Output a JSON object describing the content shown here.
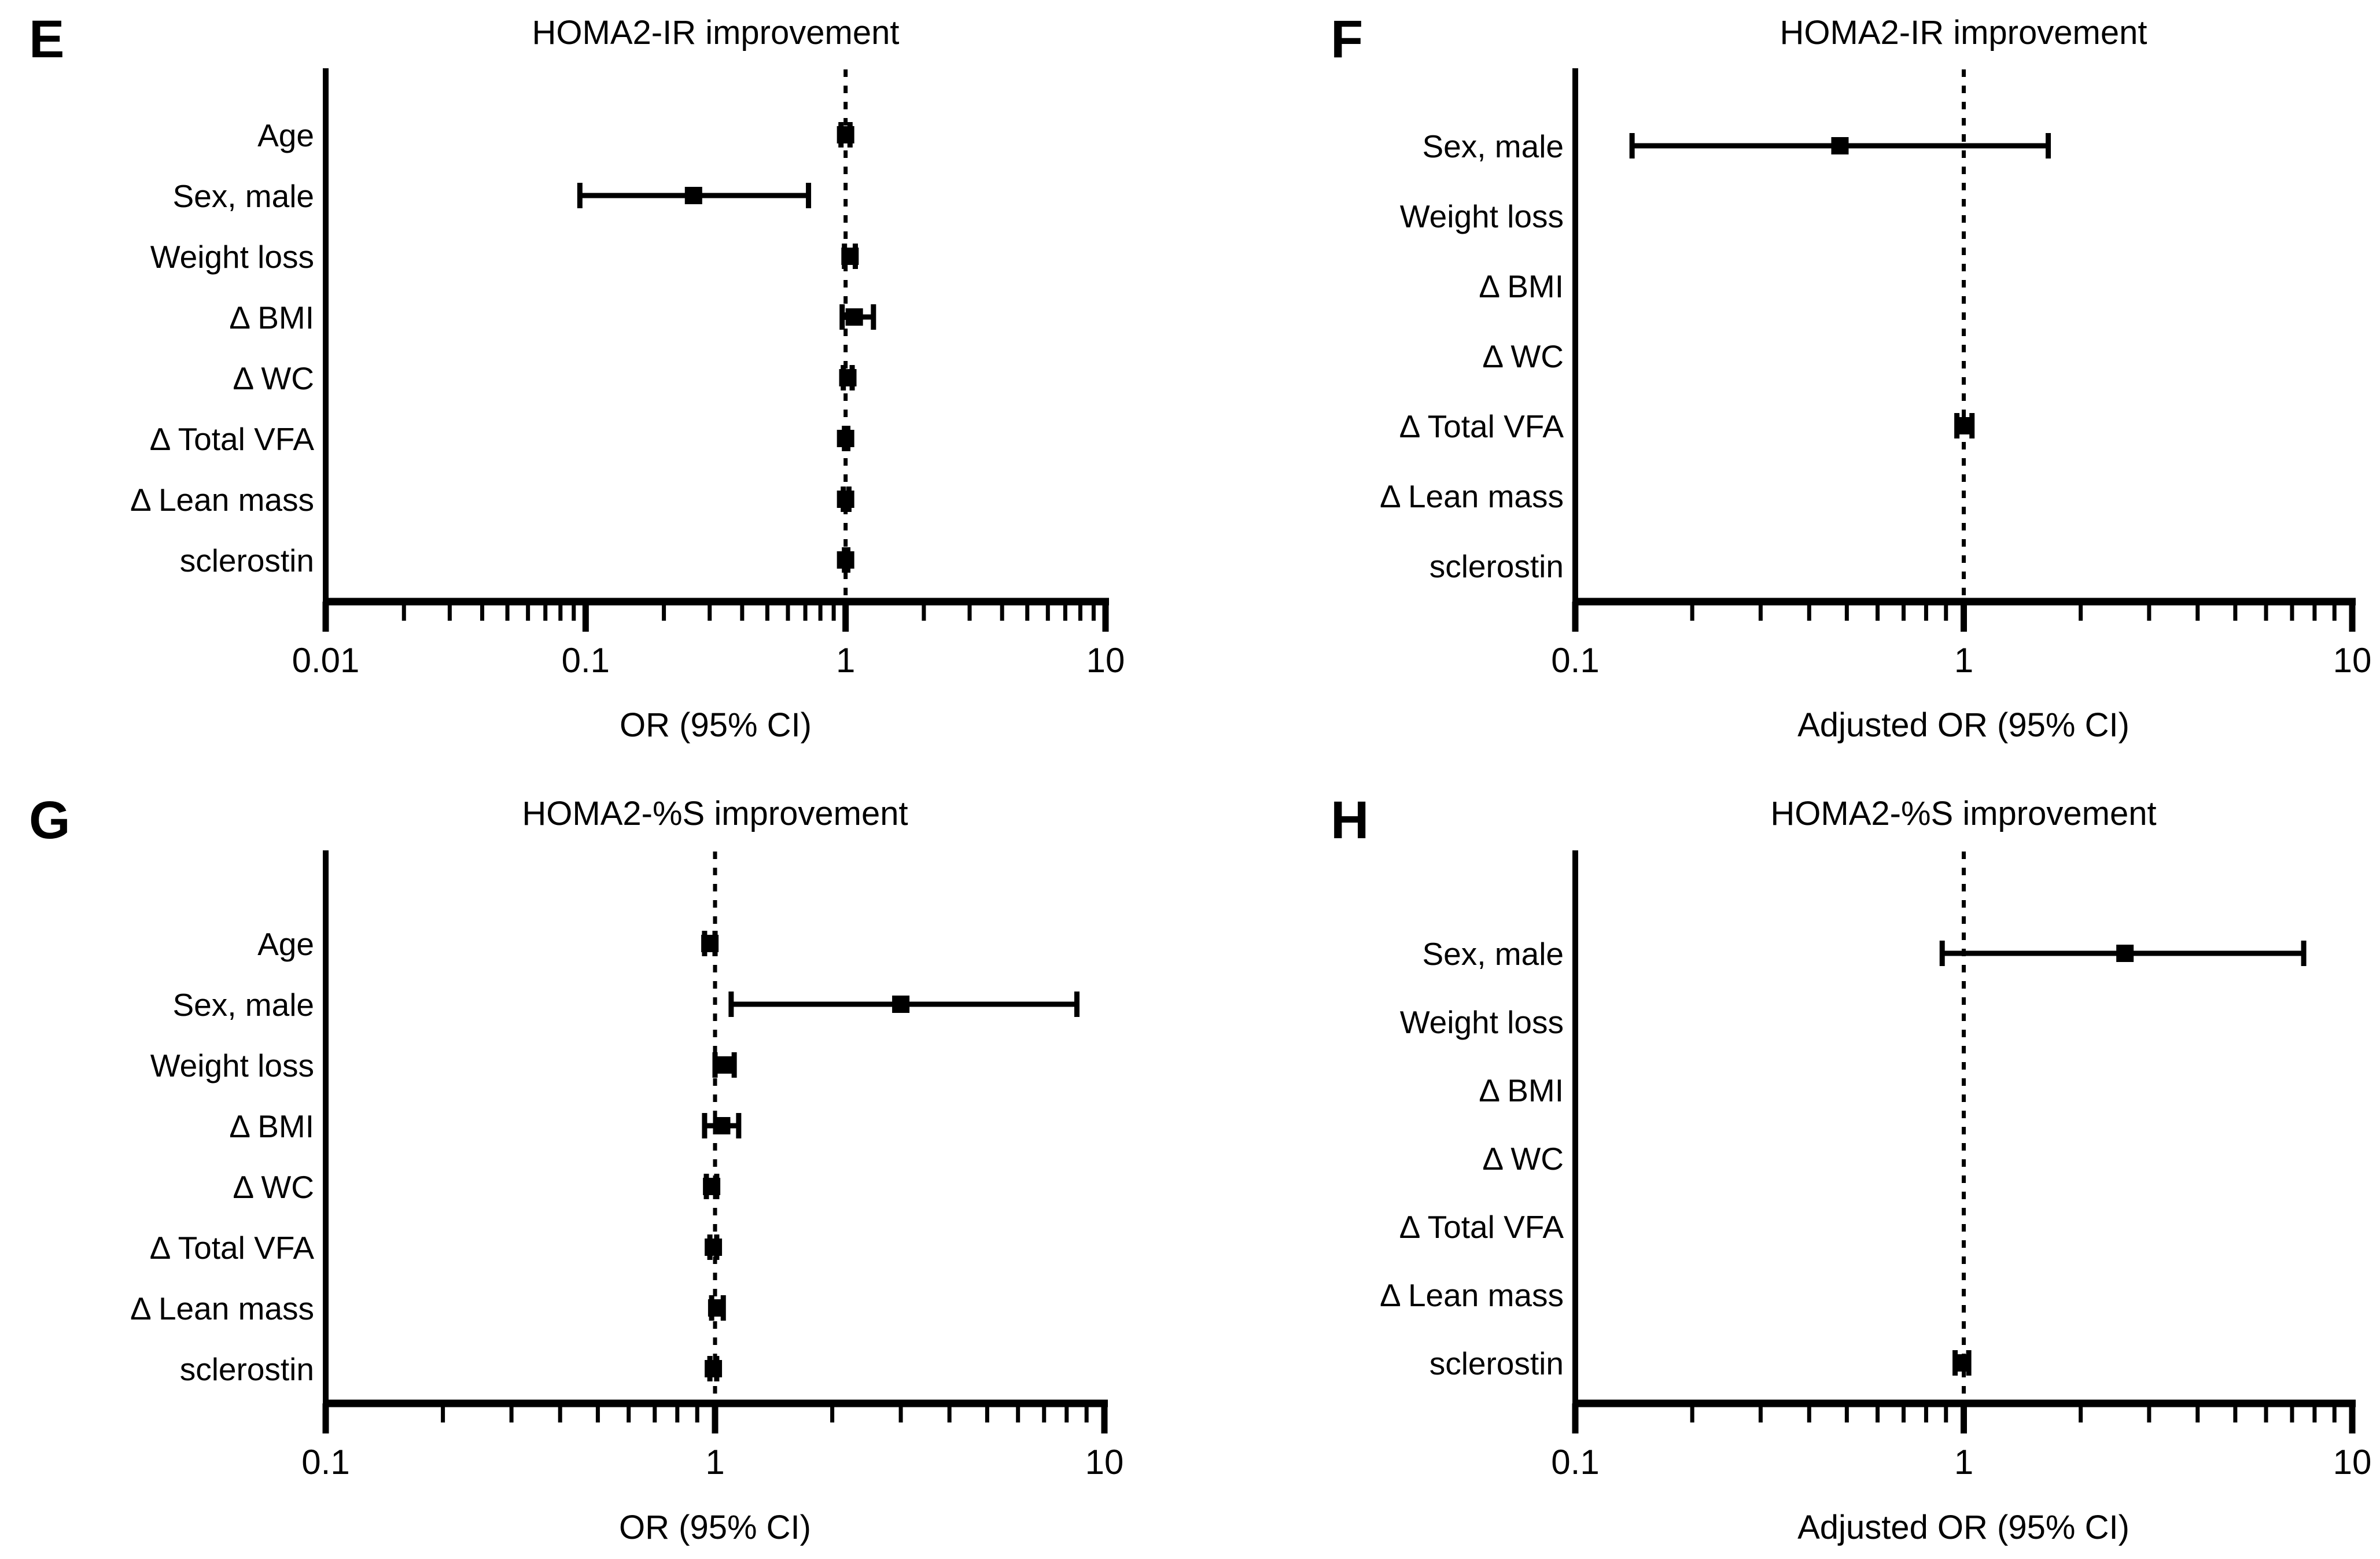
{
  "figure": {
    "background_color": "#ffffff",
    "ink_color": "#000000"
  },
  "chart_data": [
    {
      "panel_label": "E",
      "type": "forest",
      "title": "HOMA2-IR improvement",
      "xlabel": "OR (95% CI)",
      "x_scale": "log",
      "xlim": [
        0.01,
        10
      ],
      "x_ticks": [
        0.01,
        0.1,
        1,
        10
      ],
      "x_tick_labels": [
        "0.01",
        "0.1",
        "1",
        "10"
      ],
      "reference_line": 1,
      "grid": false,
      "rows": [
        {
          "label": "Age",
          "or": 1.0,
          "ci_low": 0.96,
          "ci_high": 1.04
        },
        {
          "label": "Sex, male",
          "or": 0.26,
          "ci_low": 0.095,
          "ci_high": 0.72
        },
        {
          "label": "Weight loss",
          "or": 1.04,
          "ci_low": 0.99,
          "ci_high": 1.09
        },
        {
          "label": "Δ BMI",
          "or": 1.08,
          "ci_low": 0.97,
          "ci_high": 1.28
        },
        {
          "label": "Δ WC",
          "or": 1.02,
          "ci_low": 0.98,
          "ci_high": 1.06
        },
        {
          "label": "Δ Total VFA",
          "or": 1.0,
          "ci_low": 0.99,
          "ci_high": 1.02
        },
        {
          "label": "Δ Lean mass",
          "or": 1.0,
          "ci_low": 0.98,
          "ci_high": 1.03
        },
        {
          "label": "sclerostin",
          "or": 1.0,
          "ci_low": 0.99,
          "ci_high": 1.02
        }
      ]
    },
    {
      "panel_label": "F",
      "type": "forest",
      "title": "HOMA2-IR improvement",
      "xlabel": "Adjusted OR (95% CI)",
      "x_scale": "log",
      "xlim": [
        0.1,
        10
      ],
      "x_ticks": [
        0.1,
        1,
        10
      ],
      "x_tick_labels": [
        "0.1",
        "1",
        "10"
      ],
      "reference_line": 1,
      "grid": false,
      "rows": [
        {
          "label": "Sex, male",
          "or": 0.48,
          "ci_low": 0.14,
          "ci_high": 1.65
        },
        {
          "label": "Weight loss",
          "or": null,
          "ci_low": null,
          "ci_high": null
        },
        {
          "label": "Δ BMI",
          "or": null,
          "ci_low": null,
          "ci_high": null
        },
        {
          "label": "Δ WC",
          "or": null,
          "ci_low": null,
          "ci_high": null
        },
        {
          "label": "Δ Total VFA",
          "or": 1.0,
          "ci_low": 0.96,
          "ci_high": 1.05
        },
        {
          "label": "Δ Lean mass",
          "or": null,
          "ci_low": null,
          "ci_high": null
        },
        {
          "label": "sclerostin",
          "or": null,
          "ci_low": null,
          "ci_high": null
        }
      ]
    },
    {
      "panel_label": "G",
      "type": "forest",
      "title": "HOMA2-%S improvement",
      "xlabel": "OR (95% CI)",
      "x_scale": "log",
      "xlim": [
        0.1,
        10
      ],
      "x_ticks": [
        0.1,
        1,
        10
      ],
      "x_tick_labels": [
        "0.1",
        "1",
        "10"
      ],
      "reference_line": 1,
      "grid": false,
      "rows": [
        {
          "label": "Age",
          "or": 0.97,
          "ci_low": 0.94,
          "ci_high": 1.0
        },
        {
          "label": "Sex, male",
          "or": 3.0,
          "ci_low": 1.1,
          "ci_high": 8.5
        },
        {
          "label": "Weight loss",
          "or": 1.06,
          "ci_low": 1.0,
          "ci_high": 1.12
        },
        {
          "label": "Δ BMI",
          "or": 1.04,
          "ci_low": 0.94,
          "ci_high": 1.15
        },
        {
          "label": "Δ WC",
          "or": 0.98,
          "ci_low": 0.95,
          "ci_high": 1.01
        },
        {
          "label": "Δ Total VFA",
          "or": 0.99,
          "ci_low": 0.97,
          "ci_high": 1.01
        },
        {
          "label": "Δ Lean mass",
          "or": 1.01,
          "ci_low": 0.98,
          "ci_high": 1.05
        },
        {
          "label": "sclerostin",
          "or": 0.99,
          "ci_low": 0.97,
          "ci_high": 1.01
        }
      ]
    },
    {
      "panel_label": "H",
      "type": "forest",
      "title": "HOMA2-%S improvement",
      "xlabel": "Adjusted OR (95% CI)",
      "x_scale": "log",
      "xlim": [
        0.1,
        10
      ],
      "x_ticks": [
        0.1,
        1,
        10
      ],
      "x_tick_labels": [
        "0.1",
        "1",
        "10"
      ],
      "reference_line": 1,
      "grid": false,
      "rows": [
        {
          "label": "Sex, male",
          "or": 2.6,
          "ci_low": 0.88,
          "ci_high": 7.5
        },
        {
          "label": "Weight loss",
          "or": null,
          "ci_low": null,
          "ci_high": null
        },
        {
          "label": "Δ BMI",
          "or": null,
          "ci_low": null,
          "ci_high": null
        },
        {
          "label": "Δ WC",
          "or": null,
          "ci_low": null,
          "ci_high": null
        },
        {
          "label": "Δ Total VFA",
          "or": null,
          "ci_low": null,
          "ci_high": null
        },
        {
          "label": "Δ Lean mass",
          "or": null,
          "ci_low": null,
          "ci_high": null
        },
        {
          "label": "sclerostin",
          "or": 0.99,
          "ci_low": 0.95,
          "ci_high": 1.03
        }
      ]
    }
  ]
}
